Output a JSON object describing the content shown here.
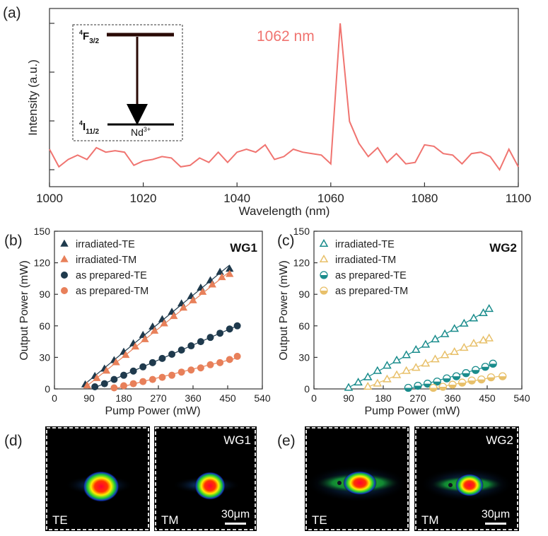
{
  "chart_data": [
    {
      "panel": "(a)",
      "type": "line",
      "xlabel": "Wavelength (nm)",
      "ylabel": "Intensity (a.u.)",
      "xlim": [
        1000,
        1100
      ],
      "xticks": [
        1000,
        1020,
        1040,
        1060,
        1080,
        1100
      ],
      "ylim": [
        0,
        1.0
      ],
      "yticks_labeled": false,
      "annotation": "1062 nm",
      "color": "#f07470",
      "series": [
        {
          "x": [
            1000,
            1002,
            1004,
            1006,
            1008,
            1010,
            1012,
            1014,
            1016,
            1018,
            1020,
            1022,
            1024,
            1026,
            1028,
            1030,
            1032,
            1034,
            1036,
            1038,
            1040,
            1042,
            1044,
            1046,
            1048,
            1050,
            1052,
            1054,
            1056,
            1058,
            1060,
            1062,
            1064,
            1066,
            1068,
            1070,
            1072,
            1074,
            1076,
            1078,
            1080,
            1082,
            1084,
            1086,
            1088,
            1090,
            1092,
            1094,
            1096,
            1098,
            1100
          ],
          "y": [
            0.14,
            0.02,
            0.07,
            0.1,
            0.07,
            0.15,
            0.12,
            0.13,
            0.12,
            0.03,
            0.06,
            0.07,
            0.09,
            0.08,
            0.02,
            0.03,
            0.08,
            0.05,
            0.12,
            0.05,
            0.12,
            0.14,
            0.12,
            0.17,
            0.07,
            0.09,
            0.14,
            0.12,
            0.11,
            0.1,
            0.04,
            1.0,
            0.33,
            0.18,
            0.09,
            0.15,
            0.05,
            0.11,
            0.04,
            0.05,
            0.17,
            0.16,
            0.11,
            0.1,
            0.04,
            0.11,
            0.12,
            0.09,
            0.0,
            0.14,
            0.02
          ]
        }
      ],
      "inset": {
        "upper_level": "4F3/2",
        "lower_level": "4I11/2",
        "ion": "Nd3+"
      }
    },
    {
      "panel": "(b)",
      "label": "WG1",
      "type": "scatter",
      "xlabel": "Pump Power (mW)",
      "ylabel": "Output Power (mW)",
      "xlim": [
        0,
        540
      ],
      "ylim": [
        0,
        150
      ],
      "xticks": [
        0,
        90,
        180,
        270,
        360,
        450,
        540
      ],
      "yticks": [
        0,
        30,
        60,
        90,
        120,
        150
      ],
      "legend_position": "top-left",
      "series": [
        {
          "name": "irradiated-TE",
          "marker": "triangle",
          "color": "#1f3a4d",
          "x": [
            80,
            105,
            130,
            155,
            180,
            205,
            230,
            255,
            280,
            305,
            330,
            355,
            380,
            405,
            430,
            455
          ],
          "y": [
            4,
            12,
            19,
            27,
            35,
            43,
            51,
            59,
            66,
            73,
            81,
            88,
            96,
            103,
            111,
            114
          ]
        },
        {
          "name": "irradiated-TM",
          "marker": "triangle",
          "color": "#e8805a",
          "x": [
            85,
            110,
            135,
            160,
            185,
            210,
            235,
            260,
            285,
            310,
            335,
            360,
            385,
            410,
            435,
            455
          ],
          "y": [
            3,
            10,
            17,
            25,
            32,
            40,
            47,
            55,
            62,
            69,
            77,
            84,
            92,
            99,
            106,
            109
          ]
        },
        {
          "name": "as prepared-TE",
          "marker": "circle",
          "color": "#1f3a4d",
          "x": [
            105,
            130,
            155,
            180,
            205,
            230,
            255,
            280,
            305,
            330,
            355,
            380,
            405,
            430,
            455,
            475
          ],
          "y": [
            2,
            5,
            9,
            13,
            17,
            21,
            25,
            29,
            33,
            37,
            41,
            45,
            49,
            53,
            57,
            60
          ]
        },
        {
          "name": "as prepared-TM",
          "marker": "circle",
          "color": "#e8805a",
          "x": [
            155,
            180,
            205,
            230,
            255,
            280,
            305,
            330,
            355,
            380,
            405,
            430,
            455,
            475
          ],
          "y": [
            1,
            3,
            5,
            7,
            9,
            11,
            13,
            16,
            18,
            20,
            23,
            25,
            28,
            31
          ]
        }
      ]
    },
    {
      "panel": "(c)",
      "label": "WG2",
      "type": "scatter",
      "xlabel": "Pump Power (mW)",
      "ylabel": "Output Power (mW)",
      "xlim": [
        0,
        540
      ],
      "ylim": [
        0,
        150
      ],
      "xticks": [
        0,
        90,
        180,
        270,
        360,
        450,
        540
      ],
      "yticks": [
        0,
        30,
        60,
        90,
        120,
        150
      ],
      "legend_position": "top-left",
      "series": [
        {
          "name": "irradiated-TE",
          "marker": "open-triangle",
          "color": "#1a8c8c",
          "x": [
            90,
            115,
            140,
            165,
            190,
            215,
            240,
            265,
            290,
            315,
            340,
            365,
            390,
            415,
            440,
            455
          ],
          "y": [
            1,
            6,
            11,
            17,
            22,
            27,
            32,
            37,
            42,
            47,
            52,
            57,
            62,
            67,
            72,
            76
          ]
        },
        {
          "name": "irradiated-TM",
          "marker": "open-triangle",
          "color": "#e8c06a",
          "x": [
            140,
            165,
            190,
            215,
            240,
            265,
            290,
            315,
            340,
            365,
            390,
            415,
            440,
            455
          ],
          "y": [
            2,
            5,
            9,
            13,
            17,
            20,
            24,
            28,
            32,
            35,
            39,
            43,
            46,
            48
          ]
        },
        {
          "name": "as prepared-TE",
          "marker": "half-circle",
          "color": "#1a8c8c",
          "x": [
            245,
            270,
            295,
            320,
            345,
            370,
            395,
            420,
            445,
            465
          ],
          "y": [
            1,
            3,
            5,
            7,
            10,
            12,
            15,
            18,
            21,
            24
          ]
        },
        {
          "name": "as prepared-TM",
          "marker": "half-circle",
          "color": "#e8c06a",
          "x": [
            310,
            335,
            360,
            385,
            410,
            435,
            460,
            490
          ],
          "y": [
            1,
            2,
            4,
            6,
            8,
            9,
            11,
            12
          ]
        }
      ]
    }
  ],
  "mode_images": [
    {
      "panel": "(d)",
      "tag": "WG1",
      "tiles": [
        {
          "label": "TE",
          "scale_bar": ""
        },
        {
          "label": "TM",
          "scale_bar": "30μm"
        }
      ]
    },
    {
      "panel": "(e)",
      "tag": "WG2",
      "tiles": [
        {
          "label": "TE",
          "scale_bar": ""
        },
        {
          "label": "TM",
          "scale_bar": "30μm"
        }
      ]
    }
  ]
}
